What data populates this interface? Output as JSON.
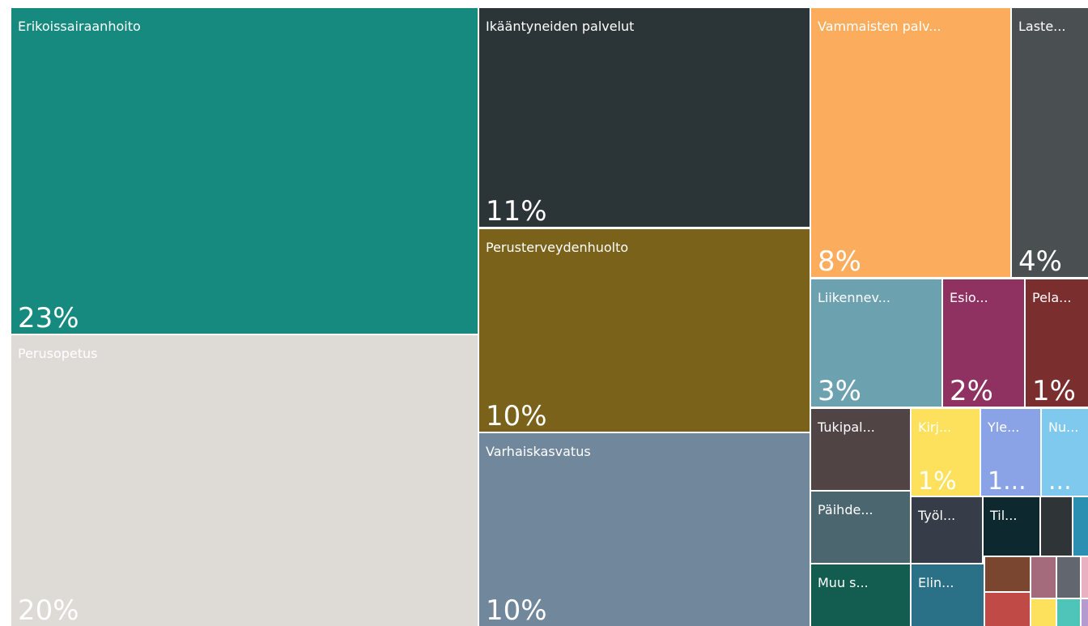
{
  "chart_data": {
    "type": "treemap",
    "categories": [
      "Erikoissairaanhoito",
      "Perusopetus",
      "Ikääntyneiden palvelut",
      "Perusterveydenhuolto",
      "Varhaiskasvatus",
      "Vammaisten palv...",
      "Laste...",
      "Liikennev...",
      "Esio...",
      "Pela...",
      "Tukipal...",
      "Kirj...",
      "Yle...",
      "Nu...",
      "Päihde...",
      "Työl...",
      "Til...",
      null,
      null,
      "Muu s...",
      "Elin...",
      null,
      null,
      null,
      null,
      null,
      null,
      null,
      null
    ],
    "values": [
      23,
      20,
      11,
      10,
      10,
      8,
      4,
      3,
      2,
      1,
      1,
      1,
      1,
      1,
      1,
      1,
      0.6,
      0.3,
      0.2,
      1,
      0.8,
      0.3,
      0.3,
      0.2,
      0.2,
      0.1,
      0.2,
      0.2,
      0.1
    ],
    "value_labels": [
      "23%",
      "20%",
      "11%",
      "10%",
      "10%",
      "8%",
      "4%",
      "3%",
      "2%",
      "1%",
      null,
      "1%",
      "1...",
      "...",
      null,
      null,
      null,
      null,
      null,
      null,
      null,
      null,
      null,
      null,
      null,
      null,
      null,
      null,
      null
    ],
    "colors": [
      "#178a80",
      "#dedad6",
      "#2b3436",
      "#7a621b",
      "#71879b",
      "#fbad5d",
      "#4a4f52",
      "#6ca1b0",
      "#8f3262",
      "#7a2e2e",
      "#514444",
      "#fde15d",
      "#8aa3e6",
      "#7fc8ee",
      "#4b666e",
      "#363c48",
      "#0e2830",
      "#2f3436",
      "#2a8fb0",
      "#125c50",
      "#2a7086",
      "#7a4630",
      "#c04a45",
      "#a36b7b",
      "#62666e",
      "#e8b0c0",
      "#fde15d",
      "#4fc4b8",
      "#b59ad0"
    ]
  }
}
